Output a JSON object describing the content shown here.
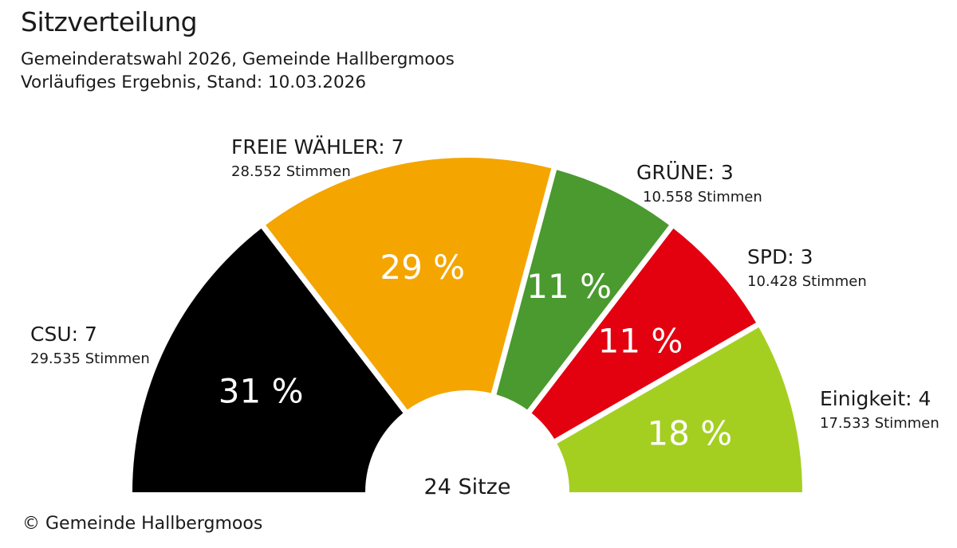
{
  "header": {
    "title": "Sitzverteilung",
    "subtitle_line1": "Gemeinderatswahl 2026, Gemeinde Hallbergmoos",
    "subtitle_line2": "Vorläufiges Ergebnis, Stand: 10.03.2026"
  },
  "footer": {
    "source": "© Gemeinde Hallbergmoos"
  },
  "chart_data": {
    "type": "pie",
    "subtype": "semicircle-donut",
    "center_label": "24 Sitze",
    "total_seats": 24,
    "series": [
      {
        "name": "CSU",
        "seats": 7,
        "seats_label": "CSU: 7",
        "votes": 29535,
        "votes_label": "29.535 Stimmen",
        "percent": 31,
        "percent_label": "31 %",
        "color": "#000000"
      },
      {
        "name": "FREIE WÄHLER",
        "seats": 7,
        "seats_label": "FREIE WÄHLER: 7",
        "votes": 28552,
        "votes_label": "28.552 Stimmen",
        "percent": 29,
        "percent_label": "29 %",
        "color": "#F5A500"
      },
      {
        "name": "GRÜNE",
        "seats": 3,
        "seats_label": "GRÜNE: 3",
        "votes": 10558,
        "votes_label": "10.558 Stimmen",
        "percent": 11,
        "percent_label": "11 %",
        "color": "#4A9A2F"
      },
      {
        "name": "SPD",
        "seats": 3,
        "seats_label": "SPD: 3",
        "votes": 10428,
        "votes_label": "10.428 Stimmen",
        "percent": 11,
        "percent_label": "11 %",
        "color": "#E3000F"
      },
      {
        "name": "Einigkeit",
        "seats": 4,
        "seats_label": "Einigkeit: 4",
        "votes": 17533,
        "votes_label": "17.533 Stimmen",
        "percent": 18,
        "percent_label": "18 %",
        "color": "#A4CF21"
      }
    ]
  }
}
